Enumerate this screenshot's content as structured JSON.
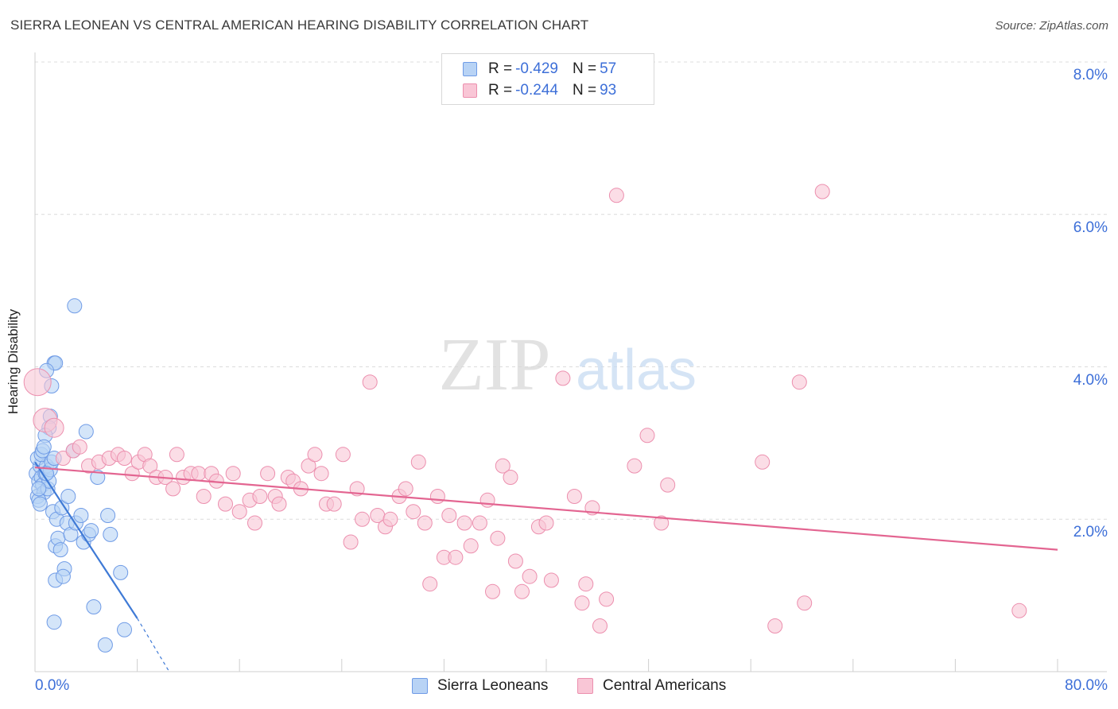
{
  "title": "SIERRA LEONEAN VS CENTRAL AMERICAN HEARING DISABILITY CORRELATION CHART",
  "source": "Source: ZipAtlas.com",
  "watermark": {
    "zip": "ZIP",
    "atlas": "atlas"
  },
  "legend": {
    "r_label": "R =",
    "n_label": "N =",
    "series": [
      {
        "name": "Sierra Leoneans",
        "r": "-0.429",
        "n": "57",
        "fill": "#b8d3f5",
        "stroke": "#6f9be6"
      },
      {
        "name": "Central Americans",
        "r": "-0.244",
        "n": "93",
        "fill": "#f9c6d6",
        "stroke": "#ec8fae"
      }
    ]
  },
  "chart_data": {
    "type": "scatter",
    "ylabel": "Hearing Disability",
    "x_tick_labels": [
      "0.0%",
      "80.0%"
    ],
    "y_tick_labels": [
      "2.0%",
      "4.0%",
      "6.0%",
      "8.0%"
    ],
    "xlim": [
      0,
      80
    ],
    "ylim": [
      0,
      8
    ],
    "colors": {
      "blue": "#3f7ad6",
      "pink": "#e36591",
      "tick": "#3d6fd8"
    },
    "grid": "horizontal dashed",
    "series": [
      {
        "name": "Sierra Leoneans",
        "points": [
          [
            0.1,
            2.6
          ],
          [
            0.2,
            2.3
          ],
          [
            0.3,
            2.5
          ],
          [
            0.4,
            2.7
          ],
          [
            0.5,
            2.55
          ],
          [
            0.2,
            2.8
          ],
          [
            0.6,
            2.45
          ],
          [
            0.7,
            2.35
          ],
          [
            0.8,
            2.6
          ],
          [
            0.9,
            2.7
          ],
          [
            1.0,
            2.4
          ],
          [
            1.1,
            2.5
          ],
          [
            1.2,
            2.65
          ],
          [
            0.5,
            2.85
          ],
          [
            0.6,
            2.9
          ],
          [
            0.3,
            2.25
          ],
          [
            0.4,
            2.2
          ],
          [
            1.3,
            2.75
          ],
          [
            1.5,
            2.8
          ],
          [
            1.4,
            2.1
          ],
          [
            1.6,
            1.65
          ],
          [
            1.7,
            2.0
          ],
          [
            1.8,
            1.75
          ],
          [
            2.0,
            1.6
          ],
          [
            2.1,
            2.15
          ],
          [
            2.3,
            1.35
          ],
          [
            2.5,
            1.95
          ],
          [
            2.6,
            2.3
          ],
          [
            2.8,
            1.8
          ],
          [
            3.0,
            2.9
          ],
          [
            3.2,
            1.95
          ],
          [
            3.6,
            2.05
          ],
          [
            3.8,
            1.7
          ],
          [
            4.0,
            3.15
          ],
          [
            4.2,
            1.8
          ],
          [
            4.4,
            1.85
          ],
          [
            4.6,
            0.85
          ],
          [
            4.9,
            2.55
          ],
          [
            5.5,
            0.35
          ],
          [
            5.7,
            2.05
          ],
          [
            5.9,
            1.8
          ],
          [
            1.5,
            4.05
          ],
          [
            1.6,
            4.05
          ],
          [
            1.3,
            3.75
          ],
          [
            3.1,
            4.8
          ],
          [
            0.9,
            3.95
          ],
          [
            1.2,
            3.35
          ],
          [
            1.1,
            3.2
          ],
          [
            0.8,
            3.1
          ],
          [
            0.7,
            2.95
          ],
          [
            6.7,
            1.3
          ],
          [
            1.6,
            1.2
          ],
          [
            2.2,
            1.25
          ],
          [
            7.0,
            0.55
          ],
          [
            1.5,
            0.65
          ],
          [
            0.3,
            2.4
          ],
          [
            0.9,
            2.6
          ]
        ],
        "trend": {
          "x": [
            0,
            8
          ],
          "y": [
            2.75,
            0.7
          ],
          "dash_to": [
            10.5,
            0.0
          ]
        }
      },
      {
        "name": "Central Americans",
        "points": [
          [
            0.2,
            3.8
          ],
          [
            0.8,
            3.3
          ],
          [
            1.5,
            3.2
          ],
          [
            2.2,
            2.8
          ],
          [
            3.0,
            2.9
          ],
          [
            3.5,
            2.95
          ],
          [
            4.2,
            2.7
          ],
          [
            5.0,
            2.75
          ],
          [
            5.8,
            2.8
          ],
          [
            6.5,
            2.85
          ],
          [
            7.0,
            2.8
          ],
          [
            7.6,
            2.6
          ],
          [
            8.1,
            2.75
          ],
          [
            8.6,
            2.85
          ],
          [
            9.0,
            2.7
          ],
          [
            9.5,
            2.55
          ],
          [
            10.2,
            2.55
          ],
          [
            10.8,
            2.4
          ],
          [
            11.1,
            2.85
          ],
          [
            11.6,
            2.55
          ],
          [
            12.2,
            2.6
          ],
          [
            12.8,
            2.6
          ],
          [
            13.2,
            2.3
          ],
          [
            13.8,
            2.6
          ],
          [
            14.2,
            2.5
          ],
          [
            14.9,
            2.2
          ],
          [
            15.5,
            2.6
          ],
          [
            16.0,
            2.1
          ],
          [
            16.8,
            2.25
          ],
          [
            17.2,
            1.95
          ],
          [
            17.6,
            2.3
          ],
          [
            18.2,
            2.6
          ],
          [
            18.8,
            2.3
          ],
          [
            19.1,
            2.2
          ],
          [
            19.8,
            2.55
          ],
          [
            20.2,
            2.5
          ],
          [
            20.8,
            2.4
          ],
          [
            21.4,
            2.7
          ],
          [
            21.9,
            2.85
          ],
          [
            22.4,
            2.6
          ],
          [
            22.8,
            2.2
          ],
          [
            23.4,
            2.2
          ],
          [
            24.1,
            2.85
          ],
          [
            24.7,
            1.7
          ],
          [
            25.2,
            2.4
          ],
          [
            25.6,
            2.0
          ],
          [
            26.2,
            3.8
          ],
          [
            26.8,
            2.05
          ],
          [
            27.4,
            1.9
          ],
          [
            27.8,
            2.0
          ],
          [
            28.5,
            2.3
          ],
          [
            29.0,
            2.4
          ],
          [
            29.6,
            2.1
          ],
          [
            30.0,
            2.75
          ],
          [
            30.5,
            1.95
          ],
          [
            30.9,
            1.15
          ],
          [
            31.5,
            2.3
          ],
          [
            32.0,
            1.5
          ],
          [
            32.4,
            2.05
          ],
          [
            32.9,
            1.5
          ],
          [
            33.6,
            1.95
          ],
          [
            34.1,
            1.65
          ],
          [
            34.8,
            1.95
          ],
          [
            35.4,
            2.25
          ],
          [
            35.8,
            1.05
          ],
          [
            36.2,
            1.75
          ],
          [
            36.6,
            2.7
          ],
          [
            37.2,
            2.55
          ],
          [
            37.6,
            1.45
          ],
          [
            38.1,
            1.05
          ],
          [
            38.7,
            1.25
          ],
          [
            39.4,
            1.9
          ],
          [
            40.0,
            1.95
          ],
          [
            40.4,
            1.2
          ],
          [
            41.3,
            3.85
          ],
          [
            42.2,
            2.3
          ],
          [
            42.8,
            0.9
          ],
          [
            43.1,
            1.15
          ],
          [
            43.6,
            2.15
          ],
          [
            44.2,
            0.6
          ],
          [
            44.7,
            0.95
          ],
          [
            45.5,
            6.25
          ],
          [
            46.9,
            2.7
          ],
          [
            47.9,
            3.1
          ],
          [
            49.0,
            1.95
          ],
          [
            49.5,
            2.45
          ],
          [
            56.9,
            2.75
          ],
          [
            57.9,
            0.6
          ],
          [
            59.8,
            3.8
          ],
          [
            60.2,
            0.9
          ],
          [
            61.6,
            6.3
          ],
          [
            77.0,
            0.8
          ]
        ],
        "trend": {
          "x": [
            0,
            80
          ],
          "y": [
            2.68,
            1.6
          ]
        }
      }
    ]
  }
}
